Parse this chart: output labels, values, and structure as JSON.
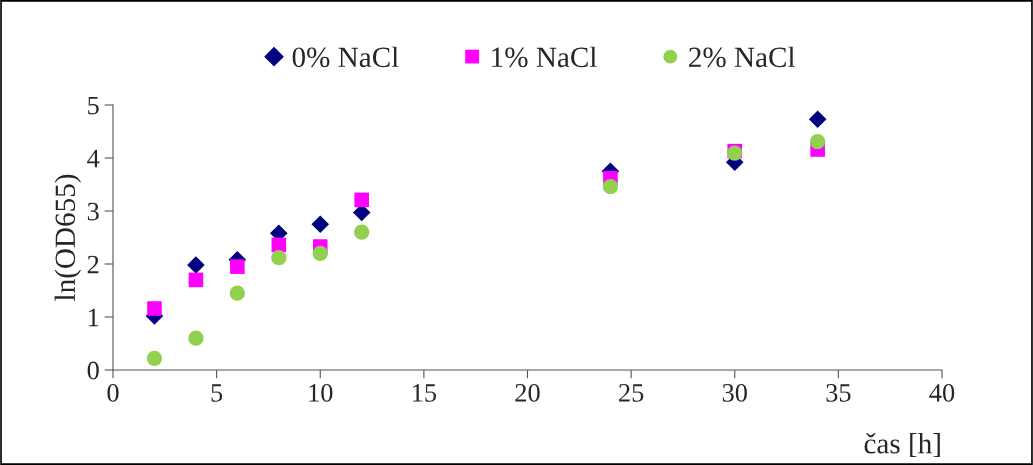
{
  "chart_data": {
    "type": "scatter",
    "xlabel": "čas [h]",
    "ylabel": "ln(OD655)",
    "x": [
      2,
      4,
      6,
      8,
      10,
      12,
      24,
      30,
      34
    ],
    "series": [
      {
        "name": "0% NaCl",
        "color": "#000080",
        "marker": "diamond",
        "values": [
          1.02,
          1.98,
          2.08,
          2.58,
          2.75,
          2.97,
          3.75,
          3.92,
          4.73
        ]
      },
      {
        "name": "1% NaCl",
        "color": "#ff00ff",
        "marker": "square",
        "values": [
          1.16,
          1.7,
          1.95,
          2.36,
          2.33,
          3.21,
          3.62,
          4.13,
          4.16
        ]
      },
      {
        "name": "2% NaCl",
        "color": "#92d050",
        "marker": "circle",
        "values": [
          0.22,
          0.6,
          1.45,
          2.12,
          2.2,
          2.6,
          3.46,
          4.09,
          4.31
        ]
      }
    ],
    "xlim": [
      0,
      40
    ],
    "xticks": [
      0,
      5,
      10,
      15,
      20,
      25,
      30,
      35,
      40
    ],
    "ylim": [
      0,
      5
    ],
    "yticks": [
      0,
      1,
      2,
      3,
      4,
      5
    ],
    "grid": false,
    "legend": "top"
  }
}
